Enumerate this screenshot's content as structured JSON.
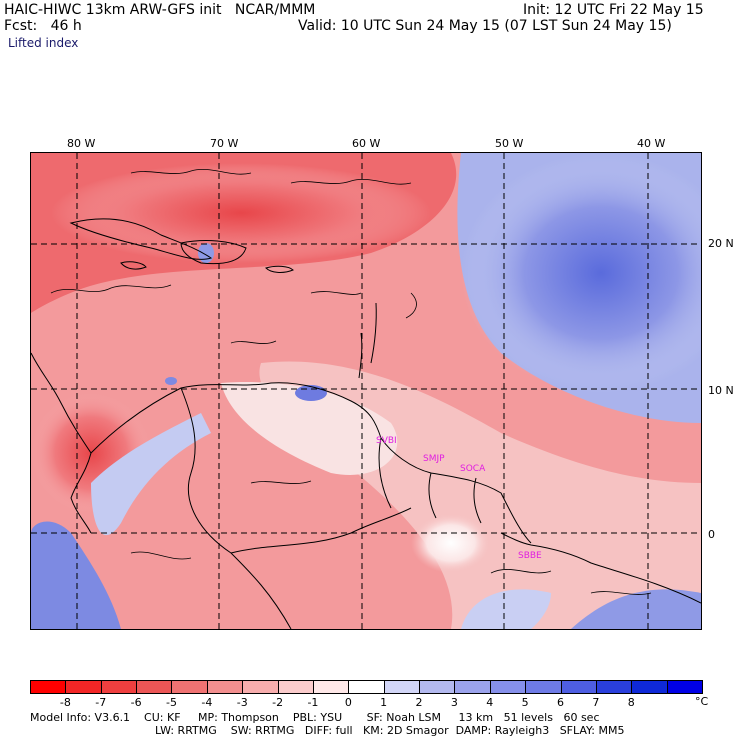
{
  "header": {
    "line1_left": "HAIC-HIWC 13km ARW-GFS init   NCAR/MMM",
    "line1_right": "Init: 12 UTC Fri 22 May 15",
    "line2_left": "Fcst:   46 h",
    "line2_right": "Valid: 10 UTC Sun 24 May 15 (07 LST Sun 24 May 15)",
    "field": "Lifted index"
  },
  "map": {
    "longitudes": [
      "80 W",
      "70 W",
      "60 W",
      "50 W",
      "40 W"
    ],
    "latitudes": [
      "20 N",
      "10 N",
      "0"
    ],
    "stations": [
      "SVBI",
      "SMJP",
      "SOCA",
      "SBBE"
    ],
    "colors": {
      "neg_strong": "#e0303a",
      "neg_mid": "#f07c80",
      "neg_light": "#f6b8b8",
      "neutral": "#ffffff",
      "pos_light": "#c8cff0",
      "pos_mid": "#8e9ae6",
      "pos_strong": "#5468dc"
    }
  },
  "colorbar": {
    "labels": [
      "-8",
      "-7",
      "-6",
      "-5",
      "-4",
      "-3",
      "-2",
      "-1",
      "0",
      "1",
      "2",
      "3",
      "4",
      "5",
      "6",
      "7",
      "8"
    ],
    "unit": "°C",
    "colors": [
      "#ff0000",
      "#f32626",
      "#ef3f3f",
      "#ec5656",
      "#ef7272",
      "#f38f8f",
      "#f7adad",
      "#fbcccc",
      "#ffe8e8",
      "#ffffff",
      "#d2d6f7",
      "#b3b9ef",
      "#9ba3ec",
      "#8690ea",
      "#6e7be6",
      "#4e5ee2",
      "#2a3fdc",
      "#0f29d8",
      "#0000e6"
    ]
  },
  "model_info": {
    "line1": "Model Info: V3.6.1    CU: KF     MP: Thompson    PBL: YSU       SF: Noah LSM     13 km   51 levels   60 sec",
    "line2": "LW: RRTMG    SW: RRTMG   DIFF: full   KM: 2D Smagor  DAMP: Rayleigh3   SFLAY: MM5"
  }
}
